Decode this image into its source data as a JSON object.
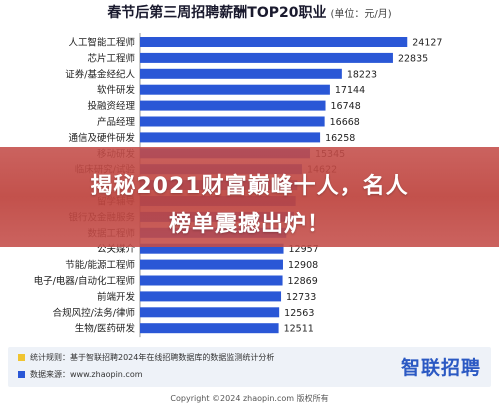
{
  "chart_data": {
    "type": "bar",
    "orientation": "horizontal",
    "title": "春节后第三周招聘薪酬TOP20职业",
    "unit": "(单位：元/月)",
    "categories": [
      "人工智能工程师",
      "芯片工程师",
      "证券/基金经纪人",
      "软件研发",
      "投融资经理",
      "产品经理",
      "通信及硬件研发",
      "移动研发",
      "临床研究/试验",
      "",
      "留学辅导",
      "银行及金融服务",
      "数据工程师",
      "公关媒介",
      "节能/能源工程师",
      "电子/电器/自动化工程师",
      "前端开发",
      "合规风控/法务/律师",
      "生物/医药研发"
    ],
    "values": [
      24127,
      22835,
      18223,
      17144,
      16748,
      16668,
      16258,
      15345,
      14622,
      14200,
      14050,
      13900,
      13200,
      12957,
      12908,
      12869,
      12733,
      12563,
      12511
    ],
    "value_labels": [
      "24127",
      "22835",
      "18223",
      "17144",
      "16748",
      "16668",
      "16258",
      "15345",
      "14622",
      "",
      "",
      "",
      "",
      "12957",
      "12908",
      "12869",
      "12733",
      "12563",
      "12511"
    ],
    "xlim": [
      0,
      26000
    ],
    "bar_color": "#2a57d6",
    "grid": false,
    "legend": "none"
  },
  "overlay": {
    "line1": "揭秘2021财富巅峰十人，名人",
    "line2": "榜单震撼出炉！"
  },
  "footer": {
    "note1": "统计规则：基于智联招聘2024年在线招聘数据库的数据监测统计分析",
    "note2": "数据来源：www.zhaopin.com",
    "logo": "智联招聘",
    "copyright": "Copyright ©2024 zhaopin.com 版权所有"
  },
  "colors": {
    "bar": "#2a57d6",
    "overlay": "#c44d49",
    "swatch_yellow": "#f0c430"
  }
}
